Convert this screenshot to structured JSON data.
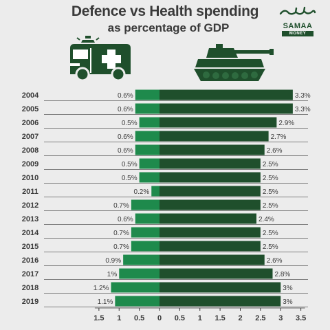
{
  "header": {
    "title": "Defence vs Health spending",
    "subtitle": "as percentage of GDP"
  },
  "logo": {
    "name": "SAMAA",
    "sub": "MONEY"
  },
  "icons": {
    "health": "ambulance-icon",
    "defence": "tank-icon"
  },
  "colors": {
    "health_bar": "#1e8a4c",
    "defence_bar": "#1f4f2c",
    "text": "#3a3a3a",
    "background": "#ececec"
  },
  "chart_data": {
    "type": "bar",
    "orientation": "horizontal-diverging",
    "categories": [
      "2004",
      "2005",
      "2006",
      "2007",
      "2008",
      "2009",
      "2010",
      "2011",
      "2012",
      "2013",
      "2014",
      "2015",
      "2016",
      "2017",
      "2018",
      "2019"
    ],
    "series": [
      {
        "values": [
          0.6,
          0.6,
          0.5,
          0.6,
          0.6,
          0.5,
          0.5,
          0.2,
          0.7,
          0.6,
          0.7,
          0.7,
          0.9,
          1,
          1.2,
          1.1
        ],
        "labels": [
          "0.6%",
          "0.6%",
          "0.5%",
          "0.6%",
          "0.6%",
          "0.5%",
          "0.5%",
          "0.2%",
          "0.7%",
          "0.6%",
          "0.7%",
          "0.7%",
          "0.9%",
          "1%",
          "1.2%",
          "1.1%"
        ]
      },
      {
        "values": [
          3.3,
          3.3,
          2.9,
          2.7,
          2.6,
          2.5,
          2.5,
          2.5,
          2.5,
          2.4,
          2.5,
          2.5,
          2.6,
          2.8,
          3,
          3
        ],
        "labels": [
          "3.3%",
          "3.3%",
          "2.9%",
          "2.7%",
          "2.6%",
          "2.5%",
          "2.5%",
          "2.5%",
          "2.5%",
          "2.4%",
          "2.5%",
          "2.5%",
          "2.6%",
          "2.8%",
          "3%",
          "3%"
        ]
      }
    ],
    "xticks": [
      "1.5",
      "1",
      "0.5",
      "0",
      "0.5",
      "1",
      "1.5",
      "2",
      "2.5",
      "3",
      "3.5"
    ],
    "xlim": [
      -1.5,
      3.5
    ],
    "grid": true
  }
}
